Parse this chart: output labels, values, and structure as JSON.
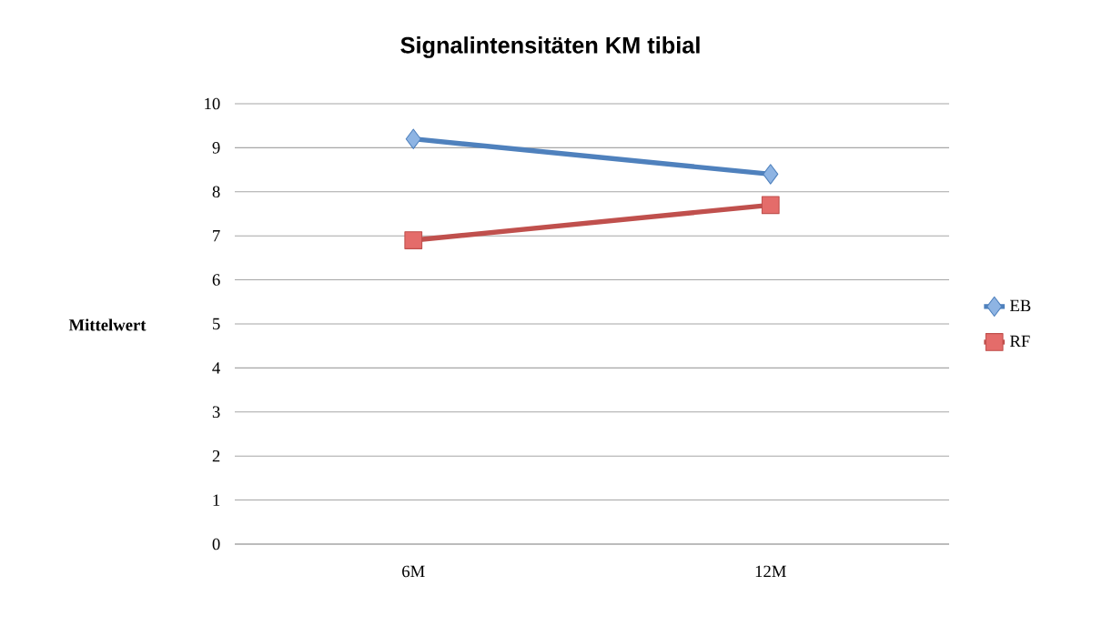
{
  "chart_data": {
    "type": "line",
    "title": "Signalintensitäten KM tibial",
    "ylabel": "Mittelwert",
    "categories": [
      "6M",
      "12M"
    ],
    "series": [
      {
        "name": "EB",
        "color": "#4f81bd",
        "marker": "diamond",
        "values": [
          9.2,
          8.4
        ]
      },
      {
        "name": "RF",
        "color": "#c0504d",
        "marker": "square",
        "values": [
          6.9,
          7.7
        ]
      }
    ],
    "ylim": [
      0,
      10
    ],
    "yticks": [
      0,
      1,
      2,
      3,
      4,
      5,
      6,
      7,
      8,
      9,
      10
    ],
    "grid": "y",
    "legend": "right",
    "line_style": "solid"
  }
}
